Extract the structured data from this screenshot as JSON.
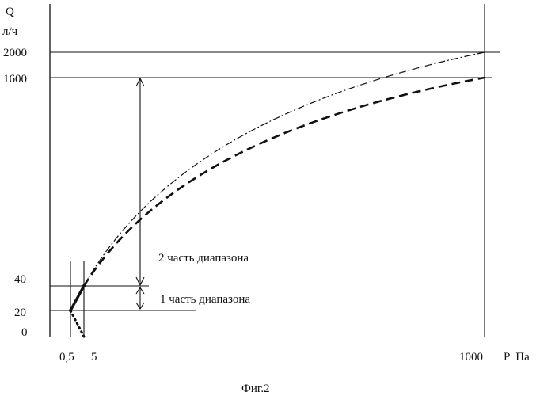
{
  "chart_data": {
    "type": "line",
    "title": "",
    "caption": "Фиг.2",
    "xlabel": "P  Па",
    "ylabel": "Q",
    "yunit": "л/ч",
    "x_ticks": [
      "0,5",
      "5",
      "1000"
    ],
    "y_ticks": [
      "2000",
      "1600",
      "40",
      "20",
      "0"
    ],
    "annotations": {
      "range1": "1 часть диапазона",
      "range2": "2 часть диапазона"
    },
    "series": [
      {
        "style": "dotted",
        "x": [
          0.5,
          5
        ],
        "y": [
          20,
          0
        ]
      },
      {
        "style": "solid-bold",
        "x": [
          0.5,
          5
        ],
        "y": [
          20,
          40
        ]
      },
      {
        "style": "dashed",
        "x": [
          5,
          1000
        ],
        "y": [
          40,
          1600
        ]
      },
      {
        "style": "dash-dot",
        "x": [
          5,
          1000
        ],
        "y": [
          40,
          2000
        ]
      }
    ]
  }
}
